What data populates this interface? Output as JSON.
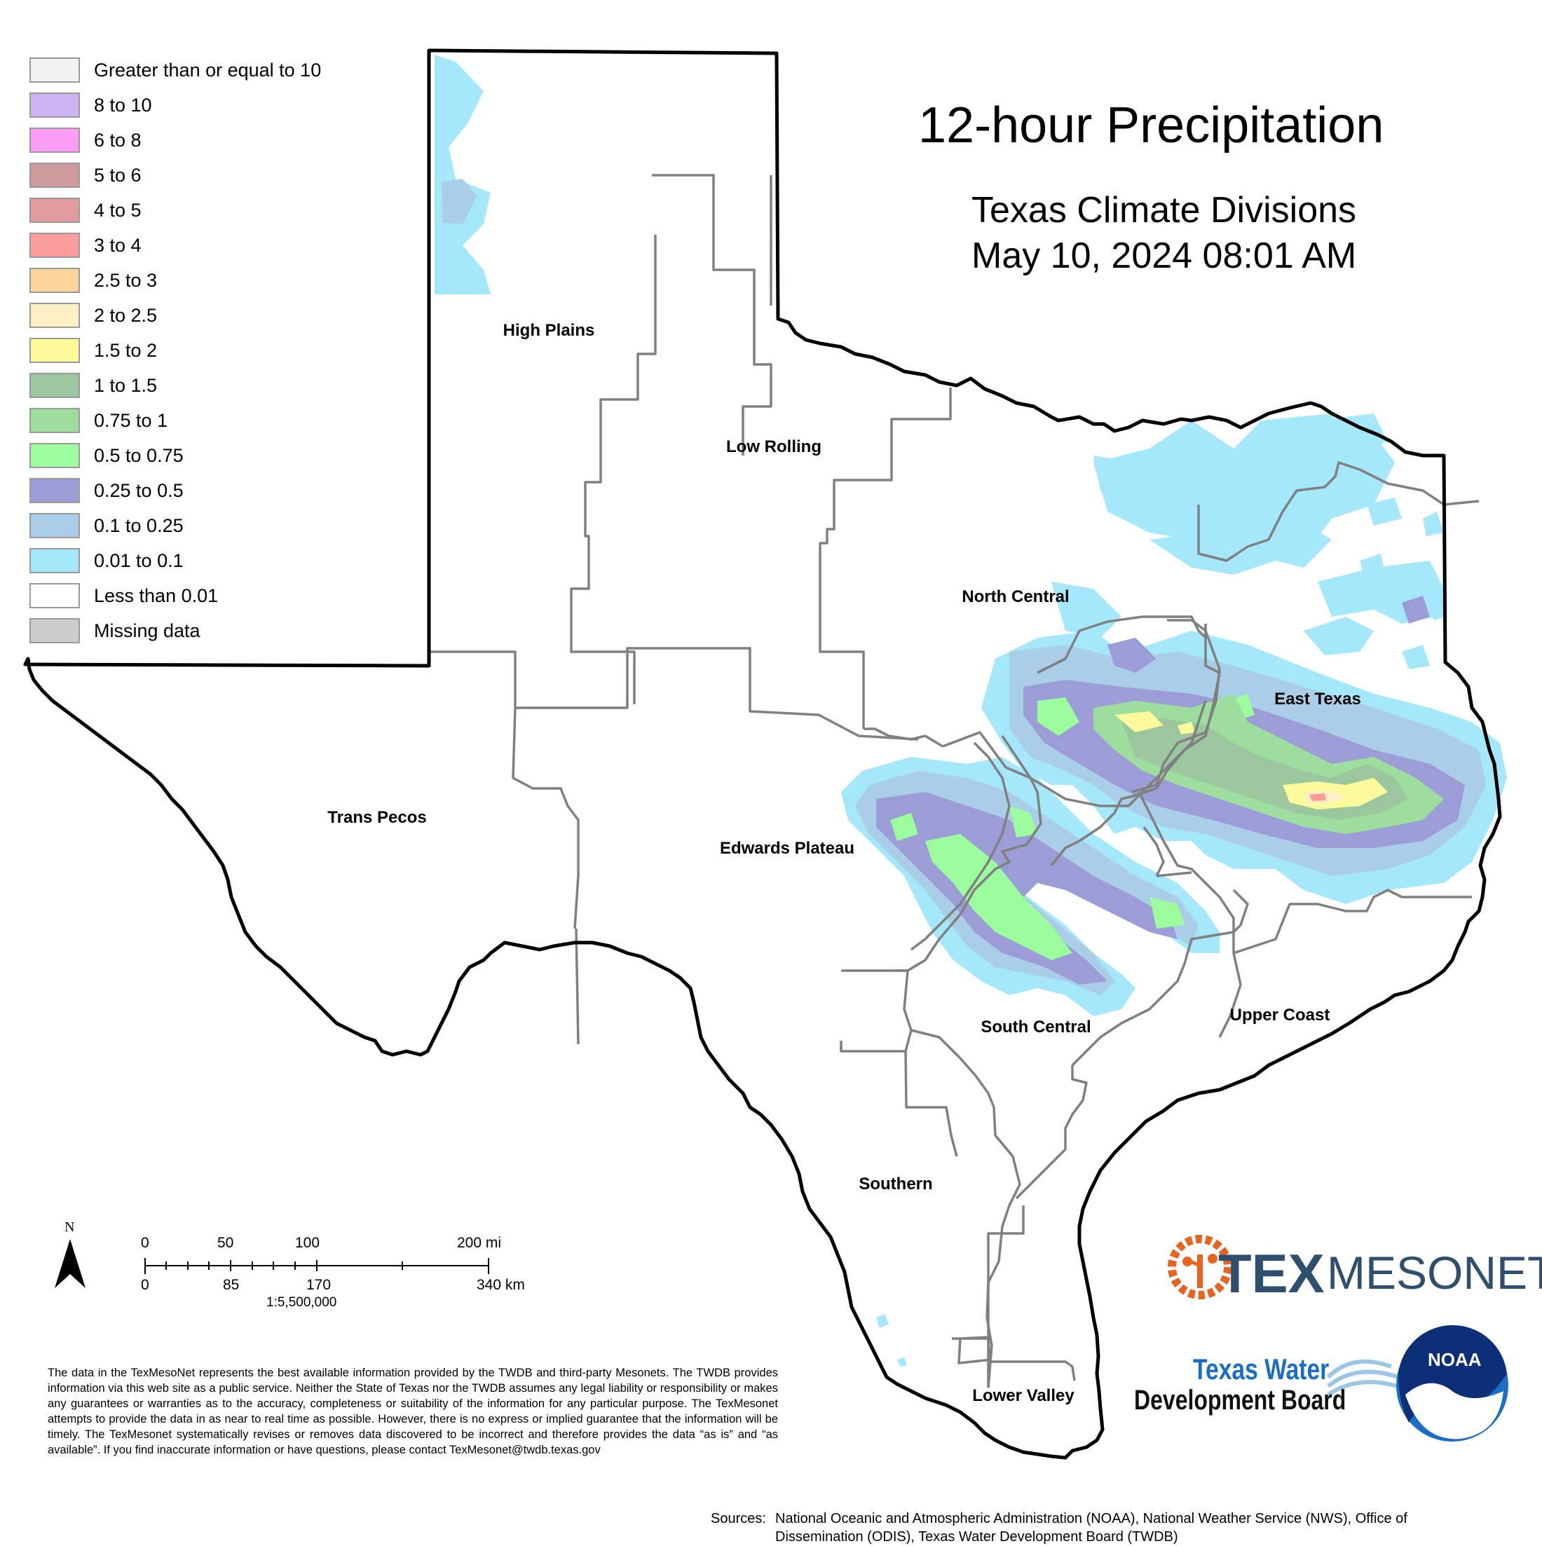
{
  "title": "12-hour Precipitation",
  "subtitle_line1": "Texas Climate Divisions",
  "subtitle_line2": "May 10, 2024 08:01 AM",
  "legend": [
    {
      "label": "Greater than or equal to 10",
      "color": "#f2f2f2"
    },
    {
      "label": "8 to 10",
      "color": "#ccb4f5"
    },
    {
      "label": "6 to 8",
      "color": "#fb9cf5"
    },
    {
      "label": "5 to 6",
      "color": "#cf9a9c"
    },
    {
      "label": "4 to 5",
      "color": "#e29c9d"
    },
    {
      "label": "3 to 4",
      "color": "#fb9c9d"
    },
    {
      "label": "2.5 to 3",
      "color": "#fbd49c"
    },
    {
      "label": "2 to 2.5",
      "color": "#fbefc3"
    },
    {
      "label": "1.5 to 2",
      "color": "#fbfb9c"
    },
    {
      "label": "1 to 1.5",
      "color": "#9cc79e"
    },
    {
      "label": "0.75 to 1",
      "color": "#9ddd9e"
    },
    {
      "label": "0.5 to 0.75",
      "color": "#9cfb9c"
    },
    {
      "label": "0.25 to 0.5",
      "color": "#9c9dd6"
    },
    {
      "label": "0.1 to 0.25",
      "color": "#aacde8"
    },
    {
      "label": "0.01 to 0.1",
      "color": "#a5e8fb"
    },
    {
      "label": "Less than 0.01",
      "color": "#ffffff"
    },
    {
      "label": "Missing data",
      "color": "#cccccc"
    }
  ],
  "regions": {
    "high_plains": "High Plains",
    "low_rolling": "Low Rolling",
    "north_central": "North Central",
    "east_texas": "East Texas",
    "trans_pecos": "Trans Pecos",
    "edwards_plateau": "Edwards Plateau",
    "south_central": "South Central",
    "upper_coast": "Upper Coast",
    "southern": "Southern",
    "lower_valley": "Lower Valley"
  },
  "scale_bar": {
    "north": "N",
    "mi_ticks": [
      "0",
      "50",
      "100",
      "200 mi"
    ],
    "km_ticks": [
      "0",
      "85",
      "170",
      "340 km"
    ],
    "ratio": "1:5,500,000"
  },
  "disclaimer": "The data in the TexMesoNet represents the best available information provided by the TWDB and third-party Mesonets. The TWDB provides information via this web site as a public service. Neither the State of Texas nor the TWDB assumes any legal liability or responsibility or makes any guarantees or warranties as to the accuracy, completeness or suitability of the information for any particular purpose. The TexMesonet attempts to provide the data in as near to real time as possible. However, there is no express or implied guarantee that the information will be timely. The TexMesonet systematically revises or removes data discovered to be incorrect and therefore provides the data “as is” and “as available”. If you find inaccurate information or have questions, please contact TexMesonet@twdb.texas.gov",
  "sources_label": "Sources:",
  "sources_text": "National Oceanic and Atmospheric Administration (NOAA), National Weather Service (NWS), Office of Dissemination (ODIS), Texas Water Development Board (TWDB)",
  "logos": {
    "texmesonet_tex": "TEX",
    "texmesonet_mesonet": "MESONET",
    "twdb_line1": "Texas Water",
    "twdb_line2": "Development Board",
    "noaa": "NOAA"
  },
  "colors": {
    "state_border": "#000000",
    "division_border": "#808080",
    "tex_blue": "#2f4f6f",
    "tex_orange": "#e8641e",
    "noaa_blue": "#1a6fc4"
  }
}
